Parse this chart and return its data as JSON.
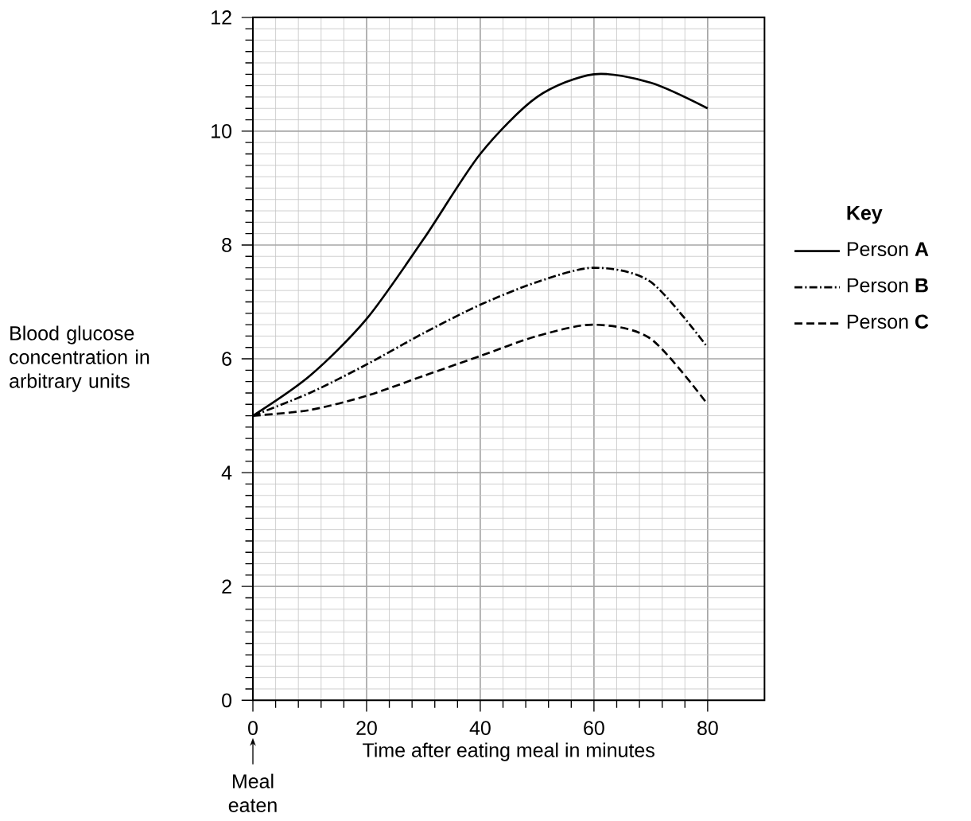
{
  "chart_data": {
    "type": "line",
    "xlabel": "Time after eating meal in minutes",
    "ylabel": "Blood glucose concentration in arbitrary units",
    "legend_title": "Key",
    "annotations": [
      "Meal eaten"
    ],
    "x": [
      0,
      10,
      20,
      30,
      40,
      50,
      60,
      70,
      80
    ],
    "series": [
      {
        "name": "Person **A**",
        "color": "#000000",
        "line_style": "solid",
        "values": [
          5,
          5.7,
          6.7,
          8.1,
          9.6,
          10.6,
          11.0,
          10.85,
          10.4
        ]
      },
      {
        "name": "Person **B**",
        "color": "#000000",
        "line_style": "dashdot",
        "values": [
          5,
          5.4,
          5.9,
          6.45,
          6.95,
          7.35,
          7.6,
          7.35,
          6.2
        ]
      },
      {
        "name": "Person **C**",
        "color": "#000000",
        "line_style": "dashed",
        "values": [
          5,
          5.1,
          5.35,
          5.7,
          6.05,
          6.4,
          6.6,
          6.35,
          5.2
        ]
      }
    ],
    "xlim": [
      0,
      90
    ],
    "ylim": [
      0,
      12
    ],
    "xticks": [
      0,
      20,
      40,
      60,
      80
    ],
    "yticks": [
      0,
      2,
      4,
      6,
      8,
      10,
      12
    ],
    "grid": true,
    "legend": "right",
    "marker": "none"
  }
}
